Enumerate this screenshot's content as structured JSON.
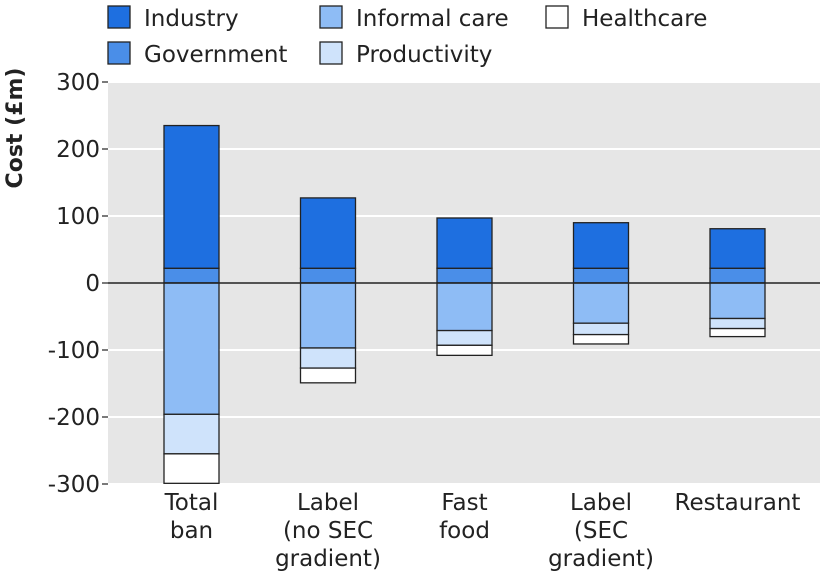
{
  "chart_data": {
    "type": "bar",
    "stacked": true,
    "title": "",
    "xlabel": "",
    "ylabel": "Cost (£m)",
    "ylim": [
      -300,
      300
    ],
    "yticks": [
      300,
      200,
      100,
      0,
      -100,
      -200,
      -300
    ],
    "ytick_labels": [
      "300",
      "200",
      "100",
      "0",
      "-100",
      "-200",
      "-300"
    ],
    "grid": "horizontal",
    "legend_position": "top",
    "categories": [
      [
        "Total",
        "ban"
      ],
      [
        "Label",
        "(no SEC",
        "gradient)"
      ],
      [
        "Fast",
        "food"
      ],
      [
        "Label",
        "(SEC",
        "gradient)"
      ],
      [
        "Restaurant"
      ]
    ],
    "series": [
      {
        "name": "Industry",
        "color": "#1e6fe0",
        "values": [
          213,
          105,
          75,
          68,
          59
        ]
      },
      {
        "name": "Government",
        "color": "#4a8ee8",
        "values": [
          22,
          22,
          22,
          22,
          22
        ]
      },
      {
        "name": "Informal care",
        "color": "#8ebcf5",
        "values": [
          -196,
          -97,
          -71,
          -60,
          -53
        ]
      },
      {
        "name": "Productivity",
        "color": "#cfe3fb",
        "values": [
          -59,
          -30,
          -22,
          -17,
          -15
        ]
      },
      {
        "name": "Healthcare",
        "color": "#ffffff",
        "values": [
          -44,
          -22,
          -15,
          -14,
          -12
        ]
      }
    ]
  }
}
